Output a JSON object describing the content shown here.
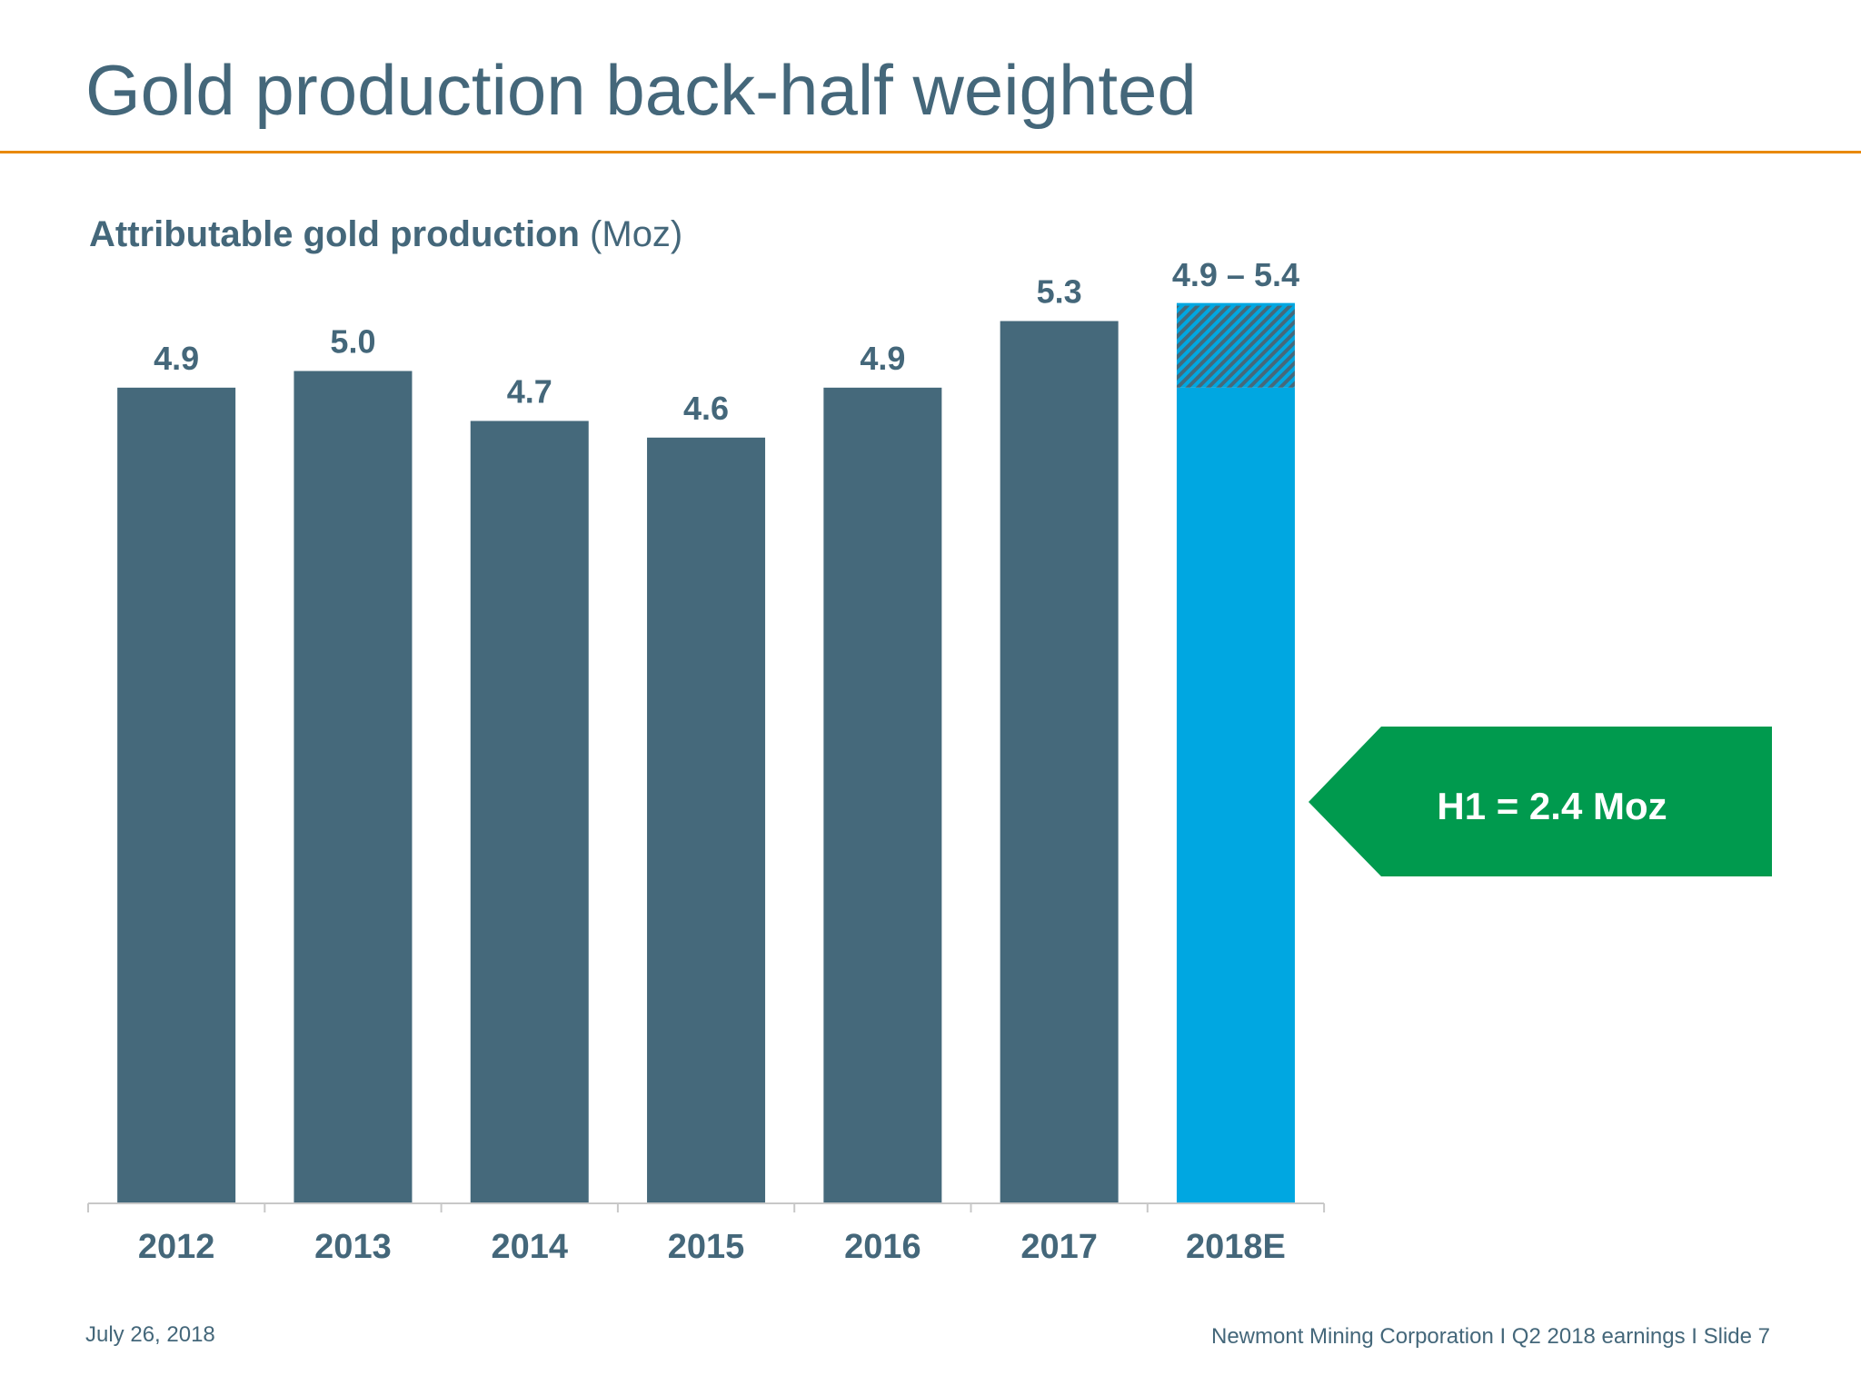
{
  "slide": {
    "title": "Gold production back-half weighted",
    "footer_date": "July 26, 2018",
    "footer_right": "Newmont Mining Corporation  I  Q2 2018 earnings  I  Slide 7"
  },
  "chart_data": {
    "type": "bar",
    "title": "Attributable gold production",
    "title_unit": "(Moz)",
    "categories": [
      "2012",
      "2013",
      "2014",
      "2015",
      "2016",
      "2017",
      "2018E"
    ],
    "values": [
      4.9,
      5.0,
      4.7,
      4.6,
      4.9,
      5.3,
      4.9
    ],
    "range_high": [
      null,
      null,
      null,
      null,
      null,
      null,
      5.4
    ],
    "data_labels": [
      "4.9",
      "5.0",
      "4.7",
      "4.6",
      "4.9",
      "5.3",
      "4.9 – 5.4"
    ],
    "ylim": [
      0,
      5.4
    ],
    "grid": false,
    "colors": {
      "actual": "#45697b",
      "estimate": "#00a7e1",
      "label": "#44677a",
      "axis": "#c8c8c8"
    },
    "callout": {
      "text": "H1 = 2.4 Moz",
      "color": "#009a4e",
      "text_color": "#ffffff"
    }
  }
}
